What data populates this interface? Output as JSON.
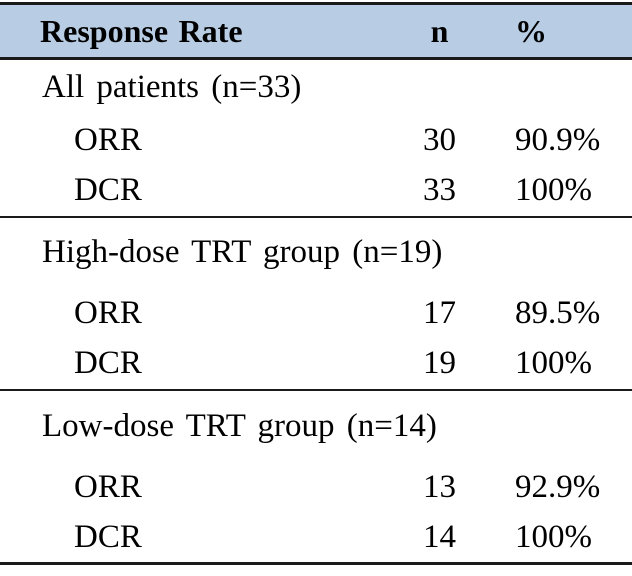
{
  "colors": {
    "header-bg": "#b8cce4",
    "border": "#1a1a1a",
    "text": "#000000"
  },
  "table": {
    "header": {
      "response_rate": "Response Rate",
      "n": "n",
      "percent": "%"
    },
    "sections": [
      {
        "group": "All patients (n=33)",
        "rows": [
          {
            "label": "ORR",
            "n": "30",
            "percent": "90.9%"
          },
          {
            "label": "DCR",
            "n": "33",
            "percent": "100%"
          }
        ]
      },
      {
        "group": "High-dose TRT group (n=19)",
        "rows": [
          {
            "label": "ORR",
            "n": "17",
            "percent": "89.5%"
          },
          {
            "label": "DCR",
            "n": "19",
            "percent": "100%"
          }
        ]
      },
      {
        "group": "Low-dose TRT group (n=14)",
        "rows": [
          {
            "label": "ORR",
            "n": "13",
            "percent": "92.9%"
          },
          {
            "label": "DCR",
            "n": "14",
            "percent": "100%"
          }
        ]
      }
    ]
  }
}
